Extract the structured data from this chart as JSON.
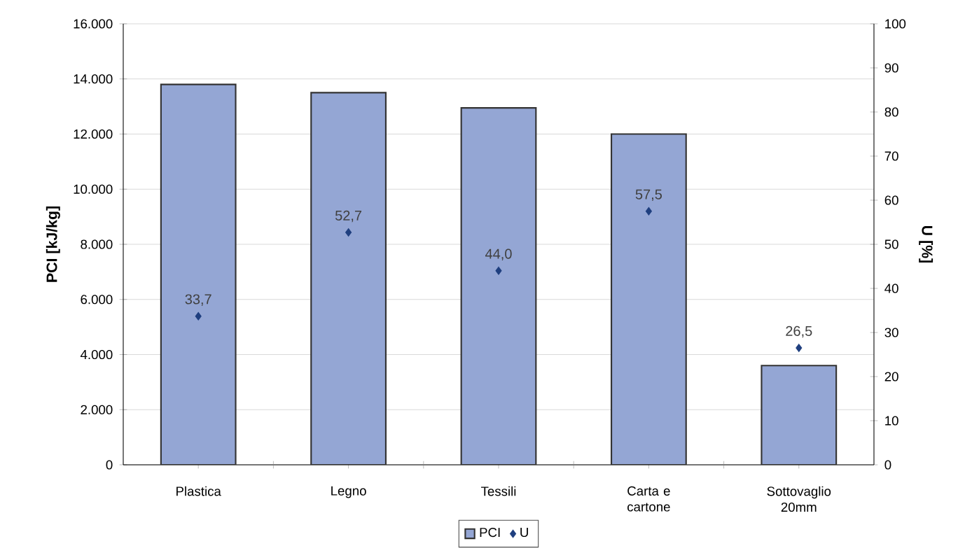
{
  "chart_data": {
    "type": "bar",
    "ylabel": "PCI [kJ/kg]",
    "y2label": "U [%]",
    "categories": [
      "Plastica",
      "Legno",
      "Tessili",
      "Carta e cartone",
      "Sottovaglio 20mm"
    ],
    "series": [
      {
        "name": "PCI",
        "color": "#94a6d4",
        "values": [
          13800,
          13500,
          12950,
          12000,
          3600
        ]
      },
      {
        "name": "U",
        "type": "scatter",
        "axis": "y2",
        "color": "#1f3f7f",
        "marker": "diamond",
        "values": [
          33.7,
          52.7,
          44.0,
          57.5,
          26.5
        ],
        "value_labels": [
          "33,7",
          "52,7",
          "44,0",
          "57,5",
          "26,5"
        ]
      }
    ],
    "ylim": [
      0,
      16000
    ],
    "yticks": [
      {
        "value": 0,
        "label": "0"
      },
      {
        "value": 2000,
        "label": "2.000"
      },
      {
        "value": 4000,
        "label": "4.000"
      },
      {
        "value": 6000,
        "label": "6.000"
      },
      {
        "value": 8000,
        "label": "8.000"
      },
      {
        "value": 10000,
        "label": "10.000"
      },
      {
        "value": 12000,
        "label": "12.000"
      },
      {
        "value": 14000,
        "label": "14.000"
      },
      {
        "value": 16000,
        "label": "16.000"
      }
    ],
    "y2lim": [
      0,
      100
    ],
    "y2ticks": [
      0,
      10,
      20,
      30,
      40,
      50,
      60,
      70,
      80,
      90,
      100
    ],
    "grid": "y",
    "legend": "bottom"
  }
}
